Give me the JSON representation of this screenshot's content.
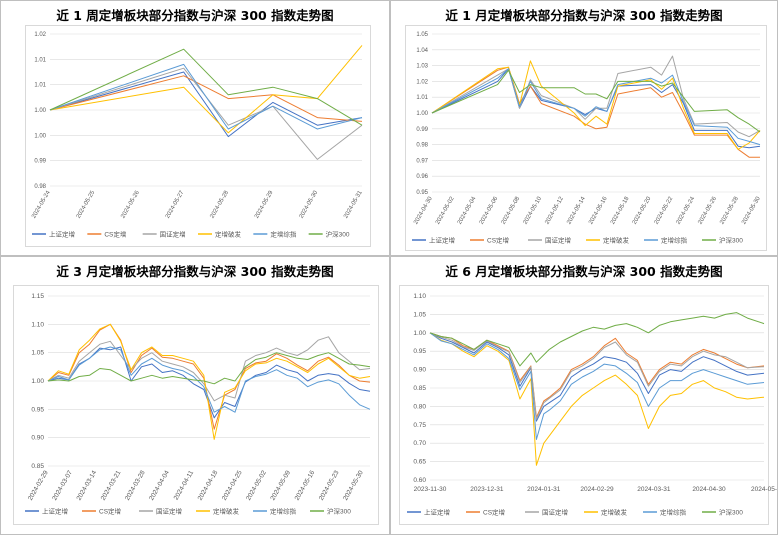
{
  "colors": {
    "上证定增": "#4472C4",
    "CS定增": "#ED7D31",
    "国证定增": "#A5A5A5",
    "定增破发": "#FFC000",
    "定增综指": "#5B9BD5",
    "沪深300": "#70AD47"
  },
  "chart_data": [
    {
      "type": "line",
      "title": "近 1 周定增板块部分指数与沪深 300 指数走势图",
      "ylim": [
        0.98,
        1.02
      ],
      "yticks": [
        "0.98",
        "0.99",
        "1.00",
        "1.00",
        "1.01",
        "1.01",
        "1.02"
      ],
      "categories": [
        "2024-05-24",
        "2024-05-25",
        "2024-05-26",
        "2024-05-27",
        "2024-05-28",
        "2024-05-29",
        "2024-05-30",
        "2024-05-31"
      ],
      "x": [
        0,
        1,
        2,
        3,
        4,
        5,
        6,
        7
      ],
      "series": [
        {
          "name": "上证定增",
          "x": [
            0,
            3,
            4,
            5,
            6,
            7
          ],
          "values": [
            1.0,
            1.01,
            0.993,
            1.002,
            0.996,
            0.998
          ]
        },
        {
          "name": "CS定增",
          "x": [
            0,
            3,
            4,
            5,
            6,
            7
          ],
          "values": [
            1.0,
            1.009,
            1.003,
            1.004,
            0.998,
            0.997
          ]
        },
        {
          "name": "国证定增",
          "x": [
            0,
            3,
            4,
            5,
            6,
            7
          ],
          "values": [
            1.0,
            1.011,
            0.996,
            1.001,
            0.987,
            0.996
          ]
        },
        {
          "name": "定增破发",
          "x": [
            0,
            3,
            4,
            5,
            6,
            7
          ],
          "values": [
            1.0,
            1.006,
            0.994,
            1.004,
            1.003,
            1.017
          ]
        },
        {
          "name": "定增综指",
          "x": [
            0,
            3,
            4,
            5,
            6,
            7
          ],
          "values": [
            1.0,
            1.012,
            0.995,
            1.001,
            0.995,
            0.998
          ]
        },
        {
          "name": "沪深300",
          "x": [
            0,
            3,
            4,
            5,
            6,
            7
          ],
          "values": [
            1.0,
            1.016,
            1.004,
            1.006,
            1.003,
            0.996
          ]
        }
      ]
    },
    {
      "type": "line",
      "title": "近 1 月定增板块部分指数与沪深 300 指数走势图",
      "ylim": [
        0.95,
        1.05
      ],
      "yticks": [
        "0.95",
        "0.96",
        "0.97",
        "0.98",
        "0.99",
        "1.00",
        "1.01",
        "1.02",
        "1.03",
        "1.04",
        "1.05"
      ],
      "categories": [
        "2024-04-30",
        "2024-05-02",
        "2024-05-04",
        "2024-05-06",
        "2024-05-08",
        "2024-05-10",
        "2024-05-12",
        "2024-05-14",
        "2024-05-16",
        "2024-05-18",
        "2024-05-20",
        "2024-05-22",
        "2024-05-24",
        "2024-05-26",
        "2024-05-28",
        "2024-05-30"
      ],
      "x": [
        0,
        6,
        7,
        8,
        9,
        10,
        13,
        14,
        15,
        16,
        17,
        20,
        21,
        22,
        23,
        24,
        27,
        28,
        29,
        30
      ],
      "series": [
        {
          "name": "上证定增",
          "values": [
            1.0,
            1.02,
            1.028,
            1.003,
            1.017,
            1.008,
            1.003,
            0.999,
            1.003,
            1.001,
            1.017,
            1.018,
            1.013,
            1.018,
            1.006,
            0.989,
            0.989,
            0.979,
            0.978,
            0.979
          ]
        },
        {
          "name": "CS定增",
          "values": [
            1.0,
            1.027,
            1.029,
            1.006,
            1.017,
            1.006,
            0.998,
            0.993,
            0.99,
            0.991,
            1.012,
            1.016,
            1.01,
            1.013,
            1.0,
            0.986,
            0.986,
            0.977,
            0.972,
            0.972
          ]
        },
        {
          "name": "国证定增",
          "values": [
            1.0,
            1.024,
            1.028,
            1.003,
            1.021,
            1.011,
            1.003,
            0.996,
            1.003,
            1.003,
            1.025,
            1.029,
            1.024,
            1.036,
            1.009,
            0.993,
            0.994,
            0.988,
            0.985,
            0.989
          ]
        },
        {
          "name": "定增破发",
          "values": [
            1.0,
            1.028,
            1.029,
            1.005,
            1.033,
            1.017,
            1.0,
            0.992,
            0.998,
            0.993,
            1.017,
            1.021,
            1.015,
            1.022,
            1.003,
            0.987,
            0.987,
            0.977,
            0.981,
            0.989
          ]
        },
        {
          "name": "定增综指",
          "values": [
            1.0,
            1.022,
            1.028,
            1.004,
            1.02,
            1.009,
            1.003,
            0.998,
            1.004,
            1.001,
            1.018,
            1.022,
            1.019,
            1.024,
            1.007,
            0.992,
            0.991,
            0.984,
            0.982,
            0.98
          ]
        },
        {
          "name": "沪深300",
          "values": [
            1.0,
            1.018,
            1.027,
            1.013,
            1.018,
            1.016,
            1.016,
            1.012,
            1.012,
            1.009,
            1.02,
            1.02,
            1.017,
            1.019,
            1.01,
            1.001,
            1.002,
            0.997,
            0.993,
            0.988
          ]
        }
      ]
    },
    {
      "type": "line",
      "title": "近 3 月定增板块部分指数与沪深 300 指数走势图",
      "ylim": [
        0.85,
        1.15
      ],
      "yticks": [
        "0.85",
        "0.90",
        "0.95",
        "1.00",
        "1.05",
        "1.10",
        "1.15"
      ],
      "categories": [
        "2024-02-29",
        "2024-03-07",
        "2024-03-14",
        "2024-03-21",
        "2024-03-28",
        "2024-04-04",
        "2024-04-11",
        "2024-04-18",
        "2024-04-25",
        "2024-05-02",
        "2024-05-09",
        "2024-05-16",
        "2024-05-23",
        "2024-05-30"
      ],
      "x": [
        0,
        3,
        6,
        9,
        12,
        15,
        18,
        21,
        24,
        27,
        30,
        33,
        36,
        39,
        42,
        45,
        48,
        51,
        54,
        57,
        60,
        63,
        66,
        69,
        72,
        75,
        78,
        81,
        84,
        87,
        90,
        93
      ],
      "series": [
        {
          "name": "上证定增",
          "values": [
            1.0,
            1.005,
            1.002,
            1.03,
            1.04,
            1.058,
            1.055,
            1.06,
            1.0,
            1.025,
            1.03,
            1.015,
            1.018,
            1.01,
            0.995,
            0.985,
            0.935,
            0.962,
            0.955,
            0.998,
            1.01,
            1.015,
            1.028,
            1.02,
            1.015,
            1.0,
            1.01,
            1.013,
            1.01,
            0.996,
            0.985,
            0.982
          ]
        },
        {
          "name": "CS定增",
          "values": [
            1.0,
            1.015,
            1.01,
            1.05,
            1.065,
            1.09,
            1.1,
            1.072,
            1.015,
            1.045,
            1.058,
            1.042,
            1.04,
            1.035,
            1.03,
            1.005,
            0.915,
            0.975,
            0.985,
            1.022,
            1.032,
            1.035,
            1.048,
            1.04,
            1.028,
            1.018,
            1.035,
            1.042,
            1.028,
            1.01,
            1.0,
            0.998
          ]
        },
        {
          "name": "国证定增",
          "values": [
            1.0,
            1.01,
            1.005,
            1.035,
            1.05,
            1.065,
            1.07,
            1.045,
            1.02,
            1.04,
            1.05,
            1.035,
            1.03,
            1.025,
            1.015,
            0.995,
            0.965,
            0.975,
            0.97,
            1.035,
            1.045,
            1.05,
            1.058,
            1.05,
            1.045,
            1.055,
            1.072,
            1.078,
            1.05,
            1.035,
            1.02,
            1.022
          ]
        },
        {
          "name": "定增破发",
          "values": [
            1.0,
            1.018,
            1.012,
            1.055,
            1.072,
            1.092,
            1.1,
            1.07,
            1.02,
            1.05,
            1.06,
            1.045,
            1.045,
            1.04,
            1.035,
            1.01,
            0.897,
            0.98,
            0.988,
            1.018,
            1.03,
            1.032,
            1.04,
            1.035,
            1.025,
            1.015,
            1.03,
            1.04,
            1.025,
            1.01,
            1.005,
            1.008
          ]
        },
        {
          "name": "定增综指",
          "values": [
            1.0,
            1.008,
            1.002,
            1.028,
            1.04,
            1.055,
            1.06,
            1.055,
            1.01,
            1.03,
            1.04,
            1.028,
            1.022,
            1.018,
            1.008,
            0.99,
            0.945,
            0.955,
            0.945,
            1.0,
            1.008,
            1.012,
            1.02,
            1.01,
            1.005,
            0.99,
            0.998,
            1.002,
            0.995,
            0.975,
            0.958,
            0.95
          ]
        },
        {
          "name": "沪深300",
          "values": [
            1.0,
            1.002,
            1.0,
            1.008,
            1.01,
            1.022,
            1.02,
            1.01,
            1.0,
            1.005,
            1.01,
            1.005,
            1.008,
            1.005,
            1.002,
            1.0,
            0.995,
            1.005,
            1.0,
            1.025,
            1.038,
            1.042,
            1.05,
            1.045,
            1.04,
            1.038,
            1.045,
            1.05,
            1.04,
            1.03,
            1.028,
            1.025
          ]
        }
      ]
    },
    {
      "type": "line",
      "title": "近 6 月定增板块部分指数与沪深 300 指数走势图",
      "ylim": [
        0.6,
        1.1
      ],
      "yticks": [
        "0.60",
        "0.65",
        "0.70",
        "0.75",
        "0.80",
        "0.85",
        "0.90",
        "0.95",
        "1.00",
        "1.05",
        "1.10"
      ],
      "categories": [
        "2023-11-30",
        "2023-12-31",
        "2024-01-31",
        "2024-02-29",
        "2024-03-31",
        "2024-04-30",
        "2024-05-"
      ],
      "x": [
        0,
        6,
        12,
        18,
        24,
        31,
        37,
        43,
        49,
        55,
        58,
        62,
        65,
        71,
        77,
        83,
        89,
        95,
        101,
        107,
        113,
        119,
        125,
        131,
        137,
        143,
        149,
        155,
        161,
        167,
        173,
        182
      ],
      "series": [
        {
          "name": "上证定增",
          "values": [
            1.0,
            0.985,
            0.975,
            0.96,
            0.945,
            0.975,
            0.96,
            0.94,
            0.855,
            0.905,
            0.76,
            0.8,
            0.81,
            0.83,
            0.88,
            0.9,
            0.915,
            0.935,
            0.93,
            0.92,
            0.89,
            0.835,
            0.885,
            0.9,
            0.895,
            0.92,
            0.935,
            0.925,
            0.91,
            0.895,
            0.885,
            0.89
          ]
        },
        {
          "name": "CS定增",
          "values": [
            1.0,
            0.99,
            0.985,
            0.965,
            0.955,
            0.98,
            0.965,
            0.95,
            0.87,
            0.91,
            0.77,
            0.815,
            0.825,
            0.85,
            0.9,
            0.915,
            0.935,
            0.965,
            0.985,
            0.945,
            0.925,
            0.86,
            0.9,
            0.92,
            0.915,
            0.94,
            0.955,
            0.945,
            0.93,
            0.915,
            0.905,
            0.91
          ]
        },
        {
          "name": "国证定增",
          "values": [
            1.0,
            0.988,
            0.98,
            0.962,
            0.952,
            0.978,
            0.962,
            0.948,
            0.865,
            0.908,
            0.765,
            0.81,
            0.822,
            0.845,
            0.895,
            0.91,
            0.93,
            0.96,
            0.975,
            0.94,
            0.92,
            0.855,
            0.895,
            0.915,
            0.91,
            0.935,
            0.95,
            0.94,
            0.935,
            0.92,
            0.905,
            0.908
          ]
        },
        {
          "name": "定增破发",
          "values": [
            1.0,
            0.98,
            0.97,
            0.95,
            0.935,
            0.965,
            0.95,
            0.925,
            0.82,
            0.875,
            0.64,
            0.7,
            0.72,
            0.76,
            0.8,
            0.83,
            0.85,
            0.87,
            0.885,
            0.86,
            0.83,
            0.74,
            0.8,
            0.83,
            0.835,
            0.86,
            0.87,
            0.85,
            0.84,
            0.825,
            0.82,
            0.825
          ]
        },
        {
          "name": "定增综指",
          "values": [
            1.0,
            0.978,
            0.97,
            0.955,
            0.94,
            0.97,
            0.955,
            0.93,
            0.845,
            0.895,
            0.71,
            0.78,
            0.79,
            0.815,
            0.86,
            0.88,
            0.895,
            0.915,
            0.91,
            0.89,
            0.865,
            0.8,
            0.85,
            0.87,
            0.87,
            0.89,
            0.9,
            0.89,
            0.88,
            0.87,
            0.86,
            0.865
          ]
        },
        {
          "name": "沪深300",
          "values": [
            1.0,
            0.99,
            0.985,
            0.97,
            0.955,
            0.98,
            0.97,
            0.96,
            0.91,
            0.945,
            0.92,
            0.94,
            0.955,
            0.975,
            0.99,
            1.005,
            1.015,
            1.01,
            1.02,
            1.025,
            1.015,
            1.0,
            1.02,
            1.03,
            1.035,
            1.04,
            1.045,
            1.04,
            1.05,
            1.055,
            1.04,
            1.025
          ]
        }
      ]
    }
  ]
}
